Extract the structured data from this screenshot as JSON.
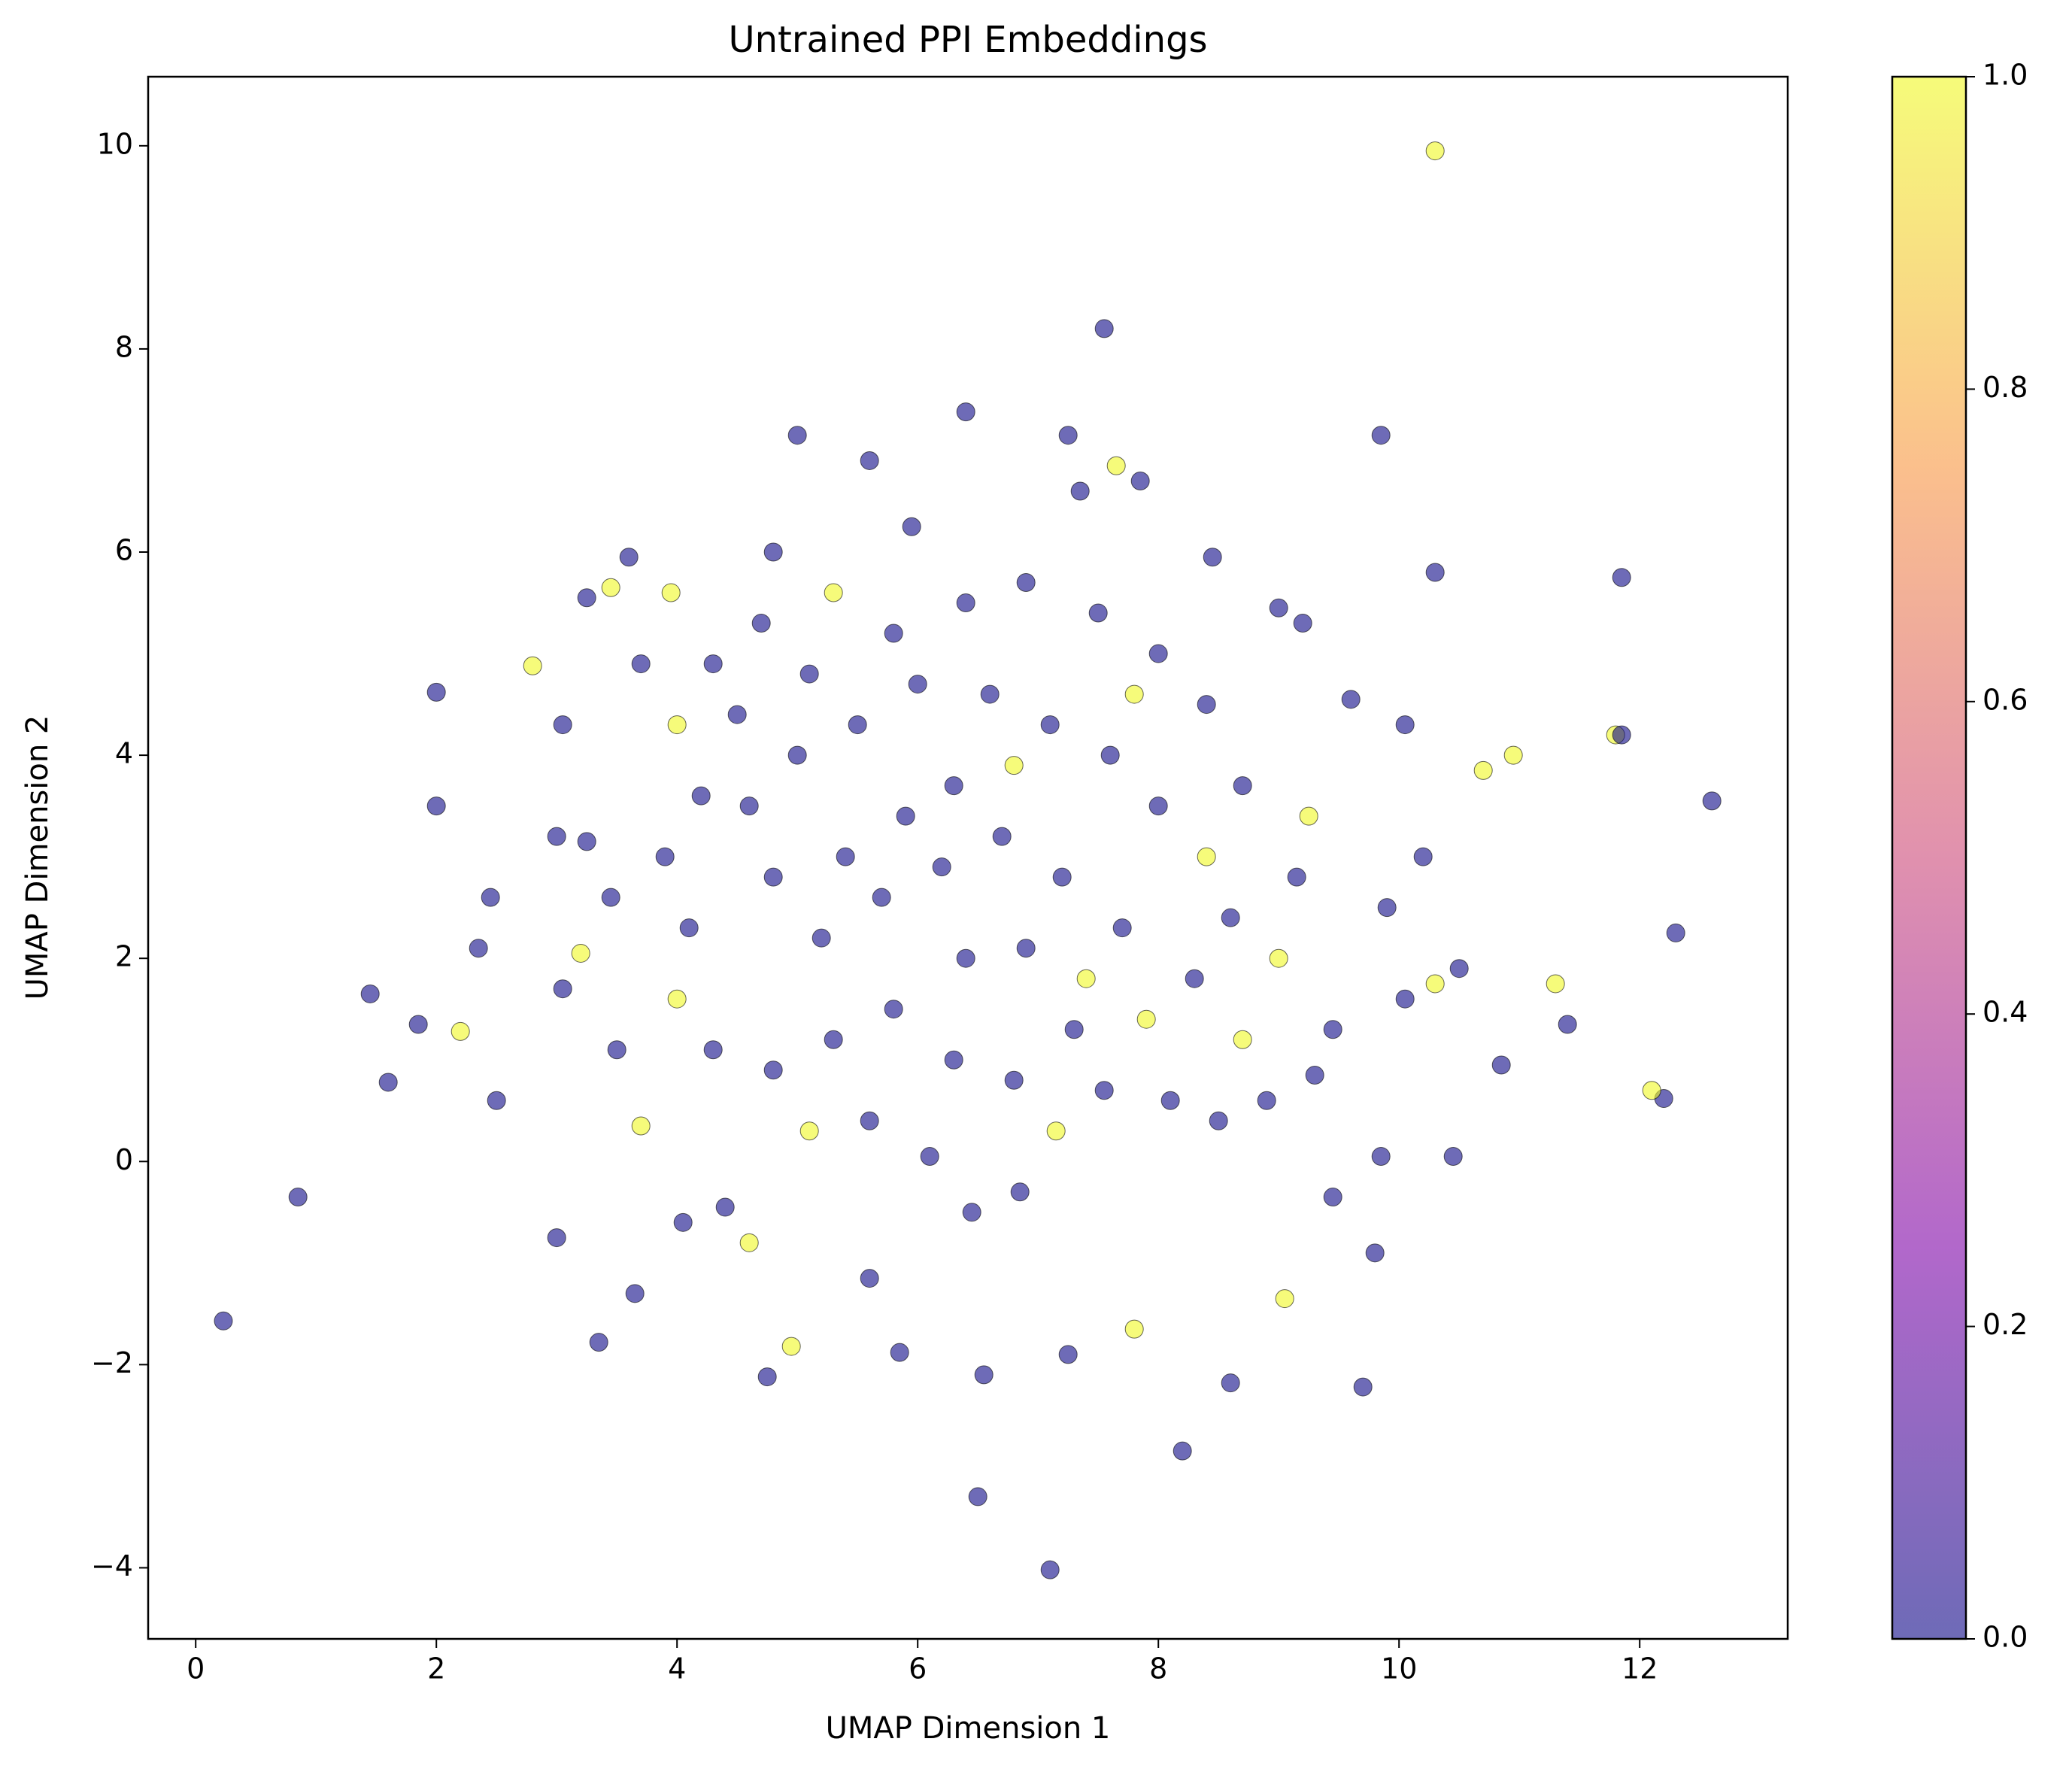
{
  "chart_data": {
    "type": "scatter",
    "title": "Untrained PPI Embeddings",
    "x_label": "UMAP Dimension 1",
    "y_label": "UMAP Dimension 2",
    "xlim": [
      -0.395,
      13.23
    ],
    "ylim": [
      -4.7,
      10.68
    ],
    "xticks": [
      0,
      2,
      4,
      6,
      8,
      10,
      12
    ],
    "yticks": [
      {
        "value": -4,
        "label": "−4"
      },
      {
        "value": -2,
        "label": "−2"
      },
      0,
      2,
      4,
      6,
      8,
      10
    ],
    "colormap": "plasma",
    "clim": [
      0,
      1
    ],
    "cticks": [
      {
        "value": 0,
        "label": "0.0"
      },
      {
        "value": 0.2,
        "label": "0.2"
      },
      {
        "value": 0.4,
        "label": "0.4"
      },
      {
        "value": 0.6,
        "label": "0.6"
      },
      {
        "value": 0.8,
        "label": "0.8"
      },
      {
        "value": 1,
        "label": "1.0"
      }
    ],
    "x": [
      10.3,
      7.55,
      0.23,
      0.85,
      12.6,
      7.1,
      6.5,
      8.2,
      11.85,
      10.3,
      9.85,
      5.0,
      6.4,
      12.3,
      12.2,
      12.1,
      1.45,
      1.6,
      2.35,
      2.8,
      2.0,
      2.0,
      3.35,
      4.75,
      4.95,
      8.6,
      9.7,
      11.8,
      11.85,
      11.4,
      11.3,
      10.85,
      10.45,
      3.0,
      3.05,
      2.5,
      2.45,
      1.85,
      2.2,
      3.65,
      4.4,
      5.6,
      5.85,
      6.55,
      7.25,
      7.8,
      9.45,
      9.05,
      9.8,
      9.85,
      10.05,
      10.3,
      10.5,
      9.9,
      10.2,
      10.7,
      10.95,
      10.05,
      9.6,
      9.2,
      9.0,
      8.45,
      7.85,
      7.25,
      7.35,
      7.65,
      5.6,
      5.95,
      4.8,
      3.6,
      3.95,
      3.25,
      3.45,
      3.7,
      3.05,
      3.0,
      3.25,
      3.45,
      3.2,
      3.5,
      3.7,
      4.05,
      4.6,
      5.1,
      5.6,
      6.1,
      6.45,
      6.85,
      7.15,
      7.55,
      8.1,
      8.5,
      8.9,
      9.3,
      9.45,
      9.0,
      9.15,
      9.25,
      8.7,
      8.4,
      8.0,
      7.5,
      6.9,
      6.4,
      5.8,
      5.3,
      4.7,
      4.3,
      4.0,
      4.2,
      3.9,
      4.1,
      4.0,
      4.3,
      4.8,
      5.3,
      5.8,
      6.3,
      6.8,
      7.3,
      7.9,
      8.3,
      8.6,
      8.4,
      8.0,
      7.6,
      7.1,
      6.6,
      6.0,
      5.5,
      5.0,
      4.6,
      4.8,
      5.2,
      5.7,
      6.2,
      6.7,
      7.2,
      7.7,
      7.4,
      6.9,
      6.4,
      5.9,
      5.4,
      6.3,
      6.8,
      5.1,
      4.5,
      7.8,
      8.7
    ],
    "values": [
      9.95,
      8.2,
      -1.57,
      -0.35,
      3.55,
      -4.02,
      -3.3,
      -2.85,
      5.75,
      5.8,
      7.15,
      7.15,
      7.38,
      2.25,
      0.62,
      0.7,
      1.65,
      0.78,
      2.1,
      4.88,
      4.62,
      3.5,
      -1.78,
      -2.12,
      -1.82,
      -2.18,
      -2.22,
      4.2,
      4.2,
      1.35,
      1.75,
      0.95,
      0.05,
      -0.75,
      1.7,
      0.6,
      2.6,
      1.35,
      1.28,
      -1.3,
      -0.45,
      -1.15,
      -1.88,
      -2.1,
      -1.9,
      -1.65,
      -0.35,
      -1.35,
      -0.9,
      0.05,
      1.6,
      1.75,
      1.9,
      2.5,
      3.0,
      3.85,
      4.0,
      4.3,
      4.55,
      5.3,
      5.45,
      5.95,
      6.7,
      7.15,
      6.6,
      6.85,
      6.9,
      6.25,
      6.0,
      5.95,
      5.6,
      5.55,
      5.65,
      4.9,
      4.3,
      3.2,
      3.15,
      2.6,
      2.05,
      1.1,
      0.35,
      -0.6,
      -0.8,
      0.3,
      0.4,
      0.05,
      -0.5,
      -0.3,
      0.3,
      0.7,
      0.6,
      0.4,
      0.6,
      0.85,
      1.3,
      2.0,
      2.8,
      3.4,
      3.7,
      4.5,
      5.0,
      5.4,
      5.7,
      5.5,
      5.2,
      5.6,
      5.3,
      4.9,
      4.3,
      3.6,
      3.0,
      2.3,
      1.6,
      1.1,
      0.9,
      1.2,
      1.5,
      1.0,
      0.8,
      1.3,
      1.4,
      1.8,
      2.4,
      3.0,
      3.5,
      4.0,
      4.3,
      4.6,
      4.7,
      4.3,
      4.0,
      3.5,
      2.8,
      2.2,
      2.6,
      2.9,
      3.2,
      2.8,
      2.3,
      1.8,
      2.1,
      2.0,
      3.4,
      3.0,
      3.7,
      3.9,
      4.8,
      4.4,
      4.6,
      1.2
    ],
    "c": [
      1,
      0,
      0,
      0,
      0,
      0,
      0,
      0,
      0,
      0,
      0,
      0,
      0,
      0,
      0,
      1,
      0,
      0,
      0,
      1,
      0,
      0,
      0,
      0,
      1,
      0,
      0,
      1,
      0,
      0,
      1,
      0,
      0,
      0,
      0,
      0,
      0,
      0,
      1,
      0,
      0,
      0,
      0,
      0,
      0,
      1,
      0,
      1,
      0,
      0,
      0,
      1,
      0,
      0,
      0,
      1,
      1,
      0,
      0,
      0,
      0,
      0,
      0,
      0,
      0,
      1,
      0,
      0,
      0,
      0,
      1,
      0,
      1,
      0,
      0,
      0,
      0,
      0,
      1,
      0,
      1,
      0,
      1,
      1,
      0,
      0,
      0,
      0,
      1,
      0,
      0,
      0,
      0,
      0,
      0,
      1,
      0,
      1,
      0,
      0,
      0,
      0,
      0,
      0,
      0,
      1,
      0,
      0,
      1,
      0,
      0,
      0,
      1,
      0,
      0,
      0,
      0,
      0,
      0,
      0,
      1,
      0,
      0,
      1,
      0,
      0,
      0,
      0,
      0,
      0,
      0,
      0,
      0,
      0,
      0,
      0,
      0,
      0,
      0,
      1,
      0,
      0,
      0,
      0,
      0,
      1,
      0,
      0,
      1,
      1
    ]
  }
}
